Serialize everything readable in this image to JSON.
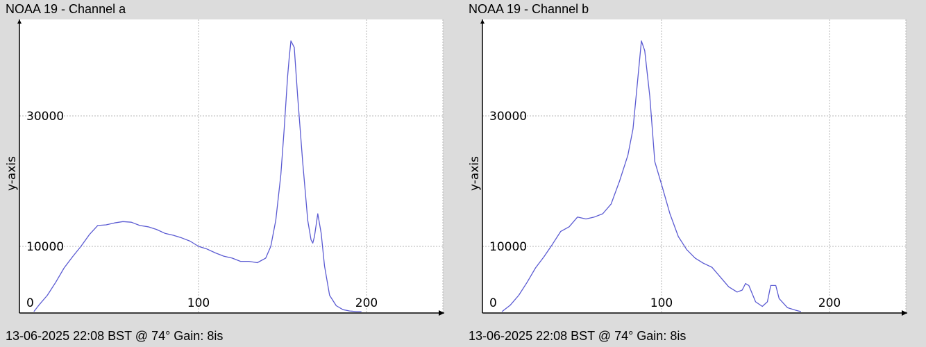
{
  "chart_data": [
    {
      "type": "line",
      "title": "NOAA 19 - Channel a",
      "ylabel": "y-axis",
      "xlabel": "",
      "footer": "13-06-2025 22:08 BST @ 74° Gain: 8is",
      "xlim": [
        0,
        245
      ],
      "ylim": [
        0,
        44000
      ],
      "x_ticks": [
        0,
        100,
        200
      ],
      "y_ticks": [
        0,
        10000,
        30000
      ],
      "grid": true,
      "line_color": "#5a5ad2",
      "series": [
        {
          "x": [
            2,
            5,
            10,
            15,
            20,
            25,
            30,
            35,
            40,
            45,
            50,
            55,
            60,
            65,
            70,
            75,
            80,
            85,
            90,
            95,
            100,
            105,
            110,
            115,
            120,
            125,
            130,
            135,
            140,
            143,
            146,
            149,
            151,
            153,
            154,
            155,
            157,
            159,
            162,
            164,
            165,
            167,
            168,
            169,
            171,
            173,
            175,
            178,
            182,
            186,
            190,
            194,
            197
          ],
          "y": [
            0,
            1000,
            2500,
            4500,
            6700,
            8400,
            10000,
            11800,
            13200,
            13300,
            13600,
            13800,
            13700,
            13200,
            13000,
            12600,
            12000,
            11700,
            11300,
            10800,
            10000,
            9600,
            9000,
            8500,
            8200,
            7700,
            7700,
            7500,
            8200,
            10000,
            14000,
            21000,
            28000,
            36000,
            39000,
            41500,
            40500,
            33000,
            23000,
            17000,
            14000,
            11000,
            10500,
            11500,
            15000,
            12000,
            7000,
            2500,
            900,
            300,
            100,
            0,
            0
          ]
        }
      ]
    },
    {
      "type": "line",
      "title": "NOAA 19 - Channel b",
      "ylabel": "y-axis",
      "xlabel": "",
      "footer": "13-06-2025 22:08 BST @ 74° Gain: 8is",
      "xlim": [
        0,
        245
      ],
      "ylim": [
        0,
        44000
      ],
      "x_ticks": [
        0,
        100,
        200
      ],
      "y_ticks": [
        0,
        10000,
        30000
      ],
      "grid": true,
      "line_color": "#5a5ad2",
      "series": [
        {
          "x": [
            5,
            10,
            15,
            20,
            25,
            30,
            35,
            40,
            45,
            50,
            55,
            60,
            65,
            70,
            75,
            80,
            83,
            86,
            88,
            90,
            93,
            96,
            100,
            105,
            110,
            115,
            120,
            125,
            130,
            135,
            140,
            145,
            148,
            150,
            152,
            156,
            160,
            163,
            165,
            168,
            170,
            175,
            180,
            183
          ],
          "y": [
            0,
            1000,
            2500,
            4500,
            6700,
            8400,
            10300,
            12300,
            13000,
            14500,
            14200,
            14500,
            15000,
            16500,
            20000,
            24000,
            28000,
            36000,
            41500,
            40000,
            33000,
            23000,
            19500,
            15000,
            11500,
            9500,
            8200,
            7400,
            6800,
            5300,
            3800,
            3000,
            3300,
            4300,
            4000,
            1500,
            800,
            1500,
            4000,
            4000,
            2000,
            600,
            200,
            0
          ]
        }
      ]
    }
  ]
}
